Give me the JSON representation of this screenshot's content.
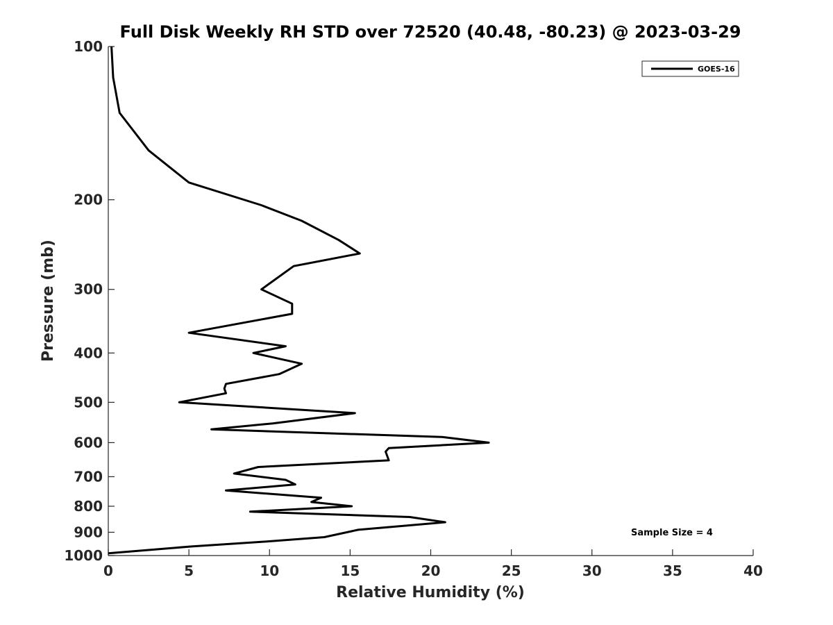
{
  "chart_data": {
    "type": "line",
    "title": "Full Disk Weekly RH STD over 72520 (40.48, -80.23) @ 2023-03-29",
    "xlabel": "Relative Humidity (%)",
    "ylabel": "Pressure (mb)",
    "xlim": [
      0,
      40
    ],
    "ylim": [
      100,
      1000
    ],
    "yscale": "log",
    "yreversed": true,
    "grid": false,
    "xticks": [
      0,
      5,
      10,
      15,
      20,
      25,
      30,
      35,
      40
    ],
    "yticks": [
      100,
      200,
      300,
      400,
      500,
      600,
      700,
      800,
      900,
      1000
    ],
    "legend": {
      "position": "top-right",
      "entries": [
        "GOES-16"
      ]
    },
    "annotation": "Sample Size = 4",
    "series": [
      {
        "name": "GOES-16",
        "color": "#000000",
        "x": [
          0.2,
          0.3,
          0.7,
          2.5,
          5.0,
          9.5,
          12.0,
          14.3,
          15.6,
          11.5,
          9.5,
          11.4,
          11.4,
          5.0,
          11.0,
          9.0,
          12.0,
          10.6,
          7.3,
          7.2,
          7.3,
          4.4,
          15.3,
          10.2,
          6.4,
          20.7,
          23.6,
          17.4,
          17.2,
          17.4,
          9.3,
          7.8,
          11.0,
          11.6,
          7.3,
          13.2,
          12.6,
          15.1,
          8.8,
          18.7,
          20.9,
          15.5,
          13.4,
          9.5,
          5.1,
          0.0
        ],
        "y": [
          100,
          115,
          135,
          160,
          185,
          205,
          220,
          240,
          255,
          270,
          300,
          320,
          335,
          365,
          388,
          400,
          420,
          440,
          460,
          470,
          480,
          500,
          525,
          550,
          565,
          585,
          600,
          615,
          625,
          650,
          670,
          690,
          710,
          725,
          745,
          770,
          785,
          800,
          820,
          840,
          860,
          890,
          920,
          940,
          960,
          990
        ]
      }
    ]
  }
}
